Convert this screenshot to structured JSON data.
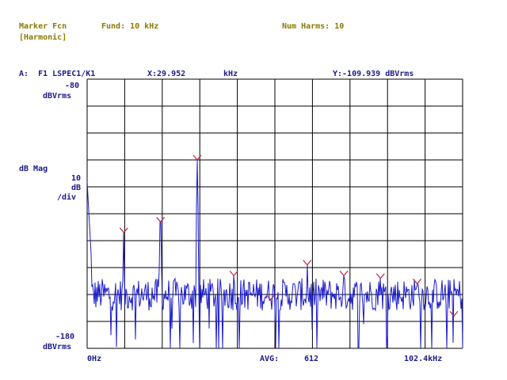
{
  "header": {
    "marker_fcn_label": "Marker Fcn",
    "marker_fcn_value": "[Harmonic]",
    "fund": "Fund: 10 kHz",
    "num_harms": "Num Harms: 10"
  },
  "trace": {
    "id": "A:  F1 LSPEC1/K1",
    "x_readout": "X:29.952",
    "x_unit": "kHz",
    "y_readout": "Y:-109.939 dBVrms"
  },
  "yaxis": {
    "top_value": "-80",
    "top_unit": "dBVrms",
    "label": "dB Mag",
    "scale_value": "10",
    "scale_unit": "dB",
    "scale_per": "/div",
    "bottom_value": "-180",
    "bottom_unit": "dBVrms"
  },
  "xaxis": {
    "start": "0Hz",
    "avg_label": "AVG:",
    "avg_value": "612",
    "stop": "102.4kHz"
  },
  "colors": {
    "trace": "#1a1acc",
    "marker": "#c0203c",
    "grid": "#000000",
    "label": "#8a7a00",
    "text": "#1a1a8c"
  },
  "chart_data": {
    "type": "line",
    "xlim": [
      0,
      102.4
    ],
    "ylim": [
      -180,
      -80
    ],
    "x_unit": "kHz",
    "y_unit": "dBVrms",
    "grid": true,
    "x_divisions": 10,
    "y_divisions": 10,
    "dc_spike": {
      "x": 0,
      "y": -118
    },
    "noise_floor": -160,
    "harmonic_markers": [
      {
        "x": 10,
        "y": -137
      },
      {
        "x": 20,
        "y": -133
      },
      {
        "x": 30,
        "y": -110
      },
      {
        "x": 40,
        "y": -153
      },
      {
        "x": 50,
        "y": -162
      },
      {
        "x": 60,
        "y": -149
      },
      {
        "x": 70,
        "y": -153
      },
      {
        "x": 80,
        "y": -154
      },
      {
        "x": 90,
        "y": -156
      },
      {
        "x": 100,
        "y": -168
      }
    ]
  }
}
